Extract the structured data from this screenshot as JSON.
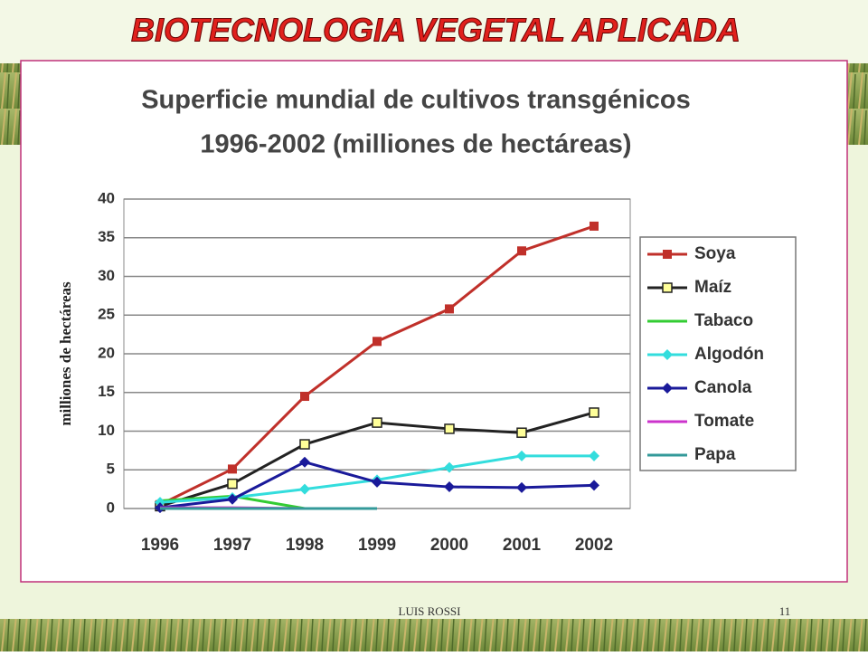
{
  "header": {
    "title": "BIOTECNOLOGIA VEGETAL APLICADA"
  },
  "footer": {
    "author": "LUIS ROSSI",
    "page": "11"
  },
  "chart_data": {
    "type": "line",
    "title": "Superficie mundial de cultivos transgénicos",
    "subtitle": "1996-2002 (milliones de hectáreas)",
    "y_label": "milliones de hectáreas",
    "categories": [
      "1996",
      "1997",
      "1998",
      "1999",
      "2000",
      "2001",
      "2002"
    ],
    "ylim": [
      0,
      40
    ],
    "yticks": [
      0,
      5,
      10,
      15,
      20,
      25,
      30,
      35,
      40
    ],
    "grid": true,
    "series": [
      {
        "name": "Soya",
        "color": "#c0302a",
        "marker": "square",
        "values": [
          0.5,
          5.1,
          14.5,
          21.6,
          25.8,
          33.3,
          36.5
        ]
      },
      {
        "name": "Maíz",
        "color": "#222222",
        "marker": "square-open",
        "marker_fill": "#ffff99",
        "values": [
          0.3,
          3.2,
          8.3,
          11.1,
          10.3,
          9.8,
          12.4
        ]
      },
      {
        "name": "Tabaco",
        "color": "#33cc33",
        "marker": "none",
        "values": [
          1.0,
          1.6,
          0,
          null,
          null,
          null,
          null
        ]
      },
      {
        "name": "Algodón",
        "color": "#33dddd",
        "marker": "diamond",
        "values": [
          0.8,
          1.4,
          2.5,
          3.7,
          5.3,
          6.8,
          6.8
        ]
      },
      {
        "name": "Canola",
        "color": "#1a1a9a",
        "marker": "diamond",
        "values": [
          0.1,
          1.2,
          6.0,
          3.4,
          2.8,
          2.7,
          3.0
        ]
      },
      {
        "name": "Tomate",
        "color": "#cc33cc",
        "marker": "none",
        "values": [
          0.1,
          0.1,
          0,
          null,
          null,
          null,
          null
        ]
      },
      {
        "name": "Papa",
        "color": "#339999",
        "marker": "none",
        "values": [
          0,
          0,
          0,
          0,
          null,
          null,
          null
        ]
      }
    ]
  }
}
